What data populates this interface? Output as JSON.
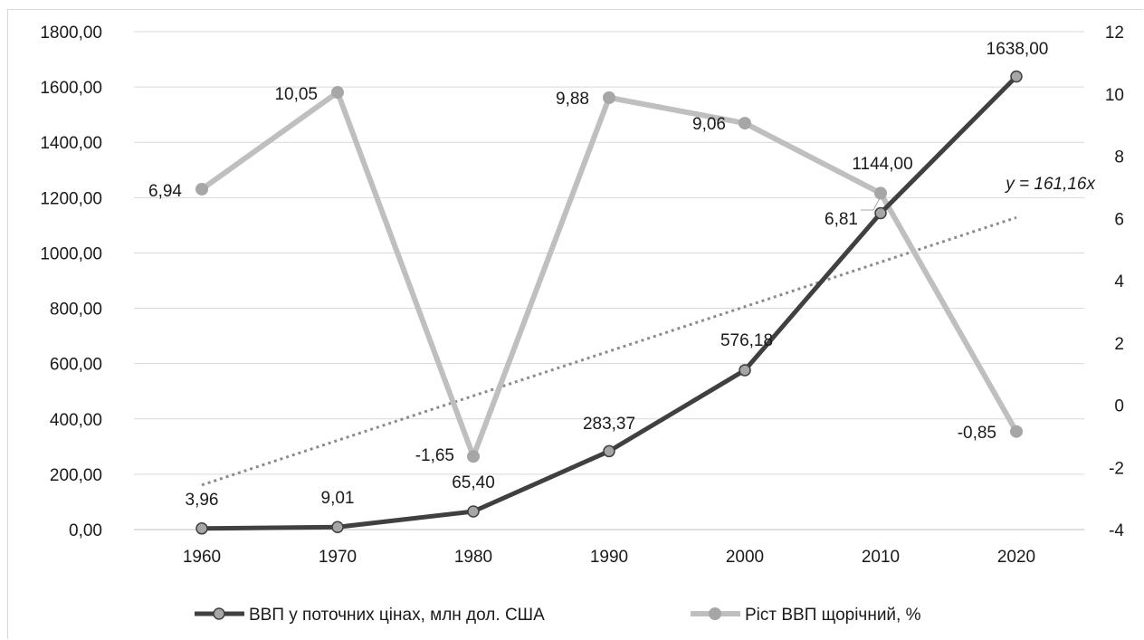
{
  "chart_data": {
    "type": "line",
    "categories": [
      "1960",
      "1970",
      "1980",
      "1990",
      "2000",
      "2010",
      "2020"
    ],
    "y_left": {
      "range": [
        0,
        1800
      ],
      "ticks": [
        0,
        200,
        400,
        600,
        800,
        1000,
        1200,
        1400,
        1600,
        1800
      ],
      "tick_labels": [
        "0,00",
        "200,00",
        "400,00",
        "600,00",
        "800,00",
        "1000,00",
        "1200,00",
        "1400,00",
        "1600,00",
        "1800,00"
      ]
    },
    "y_right": {
      "range": [
        -4,
        12
      ],
      "ticks": [
        -4,
        -2,
        0,
        2,
        4,
        6,
        8,
        10,
        12
      ],
      "tick_labels": [
        "-4",
        "-2",
        "0",
        "2",
        "4",
        "6",
        "8",
        "10",
        "12"
      ]
    },
    "series": [
      {
        "name": "ВВП у поточних цінах, млн дол. США",
        "axis": "left",
        "color": "#404040",
        "values": [
          3.96,
          9.01,
          65.4,
          283.37,
          576.18,
          1144.0,
          1638.0
        ],
        "labels": [
          "3,96",
          "9,01",
          "65,40",
          "283,37",
          "576,18",
          "1144,00",
          "1638,00"
        ]
      },
      {
        "name": "Ріст ВВП щорічний, %",
        "axis": "right",
        "color": "#bfbfbf",
        "values": [
          6.94,
          10.05,
          -1.65,
          9.88,
          9.06,
          6.81,
          -0.85
        ],
        "labels": [
          "6,94",
          "10,05",
          "-1,65",
          "9,88",
          "9,06",
          "6,81",
          "-0,85"
        ]
      }
    ],
    "trendline": {
      "series": "ВВП у поточних цінах, млн дол. США",
      "type": "linear",
      "equation": "y = 161,16x",
      "start": 161.16,
      "end": 1128.12,
      "color": "#8c8c8c",
      "style": "dotted"
    },
    "grid": true,
    "legend_position": "bottom"
  }
}
